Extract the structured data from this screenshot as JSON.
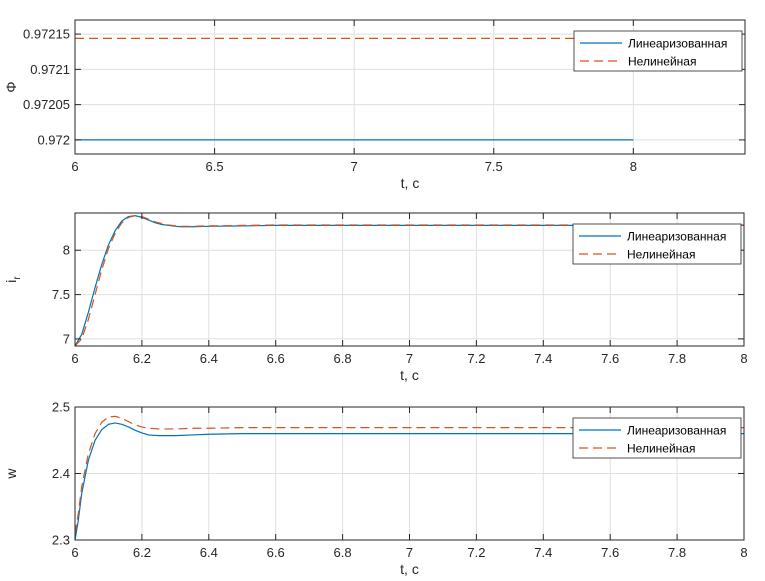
{
  "colors": {
    "linearized": "#0072bd",
    "nonlinear": "#d95319",
    "axis": "#262626",
    "grid": "#dfdfdf"
  },
  "chart_data": [
    {
      "type": "line",
      "xlabel": "t, c",
      "ylabel": "Φ",
      "xlim": [
        6,
        8.4
      ],
      "ylim": [
        0.97198,
        0.97217
      ],
      "xticks": [
        6,
        6.5,
        7,
        7.5,
        8
      ],
      "xtick_labels": [
        "6",
        "6.5",
        "7",
        "7.5",
        "8"
      ],
      "yticks": [
        0.972,
        0.97205,
        0.9721,
        0.97215
      ],
      "ytick_labels": [
        "0.972",
        "0.97205",
        "0.9721",
        "0.97215"
      ],
      "grid": true,
      "legend_position": "top-right",
      "series": [
        {
          "name": "Линеаризованная",
          "style": "solid",
          "x": [
            6,
            8
          ],
          "values": [
            0.972,
            0.972
          ]
        },
        {
          "name": "Нелинейная",
          "style": "dashed",
          "x": [
            6,
            8.4
          ],
          "values": [
            0.972144,
            0.972144
          ]
        }
      ]
    },
    {
      "type": "line",
      "xlabel": "t, c",
      "ylabel": "i",
      "ylabel_sub": "r",
      "xlim": [
        6,
        8
      ],
      "ylim": [
        6.92,
        8.42
      ],
      "xticks": [
        6,
        6.2,
        6.4,
        6.6,
        6.8,
        7,
        7.2,
        7.4,
        7.6,
        7.8,
        8
      ],
      "xtick_labels": [
        "6",
        "6.2",
        "6.4",
        "6.6",
        "6.8",
        "7",
        "7.2",
        "7.4",
        "7.6",
        "7.8",
        "8"
      ],
      "yticks": [
        7,
        7.5,
        8
      ],
      "ytick_labels": [
        "7",
        "7.5",
        "8"
      ],
      "grid": true,
      "legend_position": "top-right",
      "series": [
        {
          "name": "Линеаризованная",
          "style": "solid",
          "x": [
            6,
            6.02,
            6.04,
            6.06,
            6.08,
            6.1,
            6.12,
            6.14,
            6.16,
            6.18,
            6.2,
            6.22,
            6.24,
            6.26,
            6.28,
            6.3,
            6.32,
            6.35,
            6.4,
            6.5,
            6.6,
            6.8,
            7,
            7.5,
            8
          ],
          "values": [
            6.92,
            7.05,
            7.3,
            7.58,
            7.84,
            8.06,
            8.22,
            8.33,
            8.38,
            8.39,
            8.37,
            8.34,
            8.31,
            8.29,
            8.28,
            8.27,
            8.265,
            8.265,
            8.27,
            8.275,
            8.28,
            8.28,
            8.28,
            8.28,
            8.28
          ]
        },
        {
          "name": "Нелинейная",
          "style": "dashed",
          "x": [
            6,
            6.02,
            6.04,
            6.06,
            6.08,
            6.1,
            6.12,
            6.14,
            6.16,
            6.18,
            6.2,
            6.22,
            6.24,
            6.26,
            6.28,
            6.3,
            6.32,
            6.35,
            6.4,
            6.5,
            6.6,
            6.8,
            7,
            7.5,
            8
          ],
          "values": [
            6.92,
            7.0,
            7.22,
            7.5,
            7.78,
            8.02,
            8.19,
            8.31,
            8.37,
            8.39,
            8.38,
            8.35,
            8.32,
            8.3,
            8.285,
            8.275,
            8.27,
            8.27,
            8.275,
            8.28,
            8.285,
            8.285,
            8.285,
            8.285,
            8.285
          ]
        }
      ]
    },
    {
      "type": "line",
      "xlabel": "t, c",
      "ylabel": "w",
      "xlim": [
        6,
        8
      ],
      "ylim": [
        2.3,
        2.5
      ],
      "xticks": [
        6,
        6.2,
        6.4,
        6.6,
        6.8,
        7,
        7.2,
        7.4,
        7.6,
        7.8,
        8
      ],
      "xtick_labels": [
        "6",
        "6.2",
        "6.4",
        "6.6",
        "6.8",
        "7",
        "7.2",
        "7.4",
        "7.6",
        "7.8",
        "8"
      ],
      "yticks": [
        2.3,
        2.4,
        2.5
      ],
      "ytick_labels": [
        "2.3",
        "2.4",
        "2.5"
      ],
      "grid": true,
      "legend_position": "top-right",
      "series": [
        {
          "name": "Линеаризованная",
          "style": "solid",
          "x": [
            6,
            6.01,
            6.02,
            6.04,
            6.06,
            6.08,
            6.1,
            6.12,
            6.14,
            6.16,
            6.18,
            6.2,
            6.22,
            6.25,
            6.3,
            6.35,
            6.4,
            6.5,
            6.6,
            7,
            7.5,
            8
          ],
          "values": [
            2.3,
            2.33,
            2.37,
            2.42,
            2.45,
            2.466,
            2.474,
            2.476,
            2.474,
            2.47,
            2.465,
            2.461,
            2.458,
            2.457,
            2.457,
            2.458,
            2.459,
            2.46,
            2.46,
            2.46,
            2.46,
            2.46
          ]
        },
        {
          "name": "Нелинейная",
          "style": "dashed",
          "x": [
            6,
            6.01,
            6.02,
            6.04,
            6.06,
            6.08,
            6.1,
            6.12,
            6.14,
            6.16,
            6.18,
            6.2,
            6.22,
            6.25,
            6.3,
            6.35,
            6.4,
            6.5,
            6.6,
            7,
            7.5,
            8
          ],
          "values": [
            2.31,
            2.34,
            2.38,
            2.43,
            2.46,
            2.477,
            2.485,
            2.486,
            2.483,
            2.478,
            2.473,
            2.47,
            2.468,
            2.467,
            2.467,
            2.468,
            2.468,
            2.469,
            2.469,
            2.469,
            2.469,
            2.469
          ]
        }
      ]
    }
  ]
}
